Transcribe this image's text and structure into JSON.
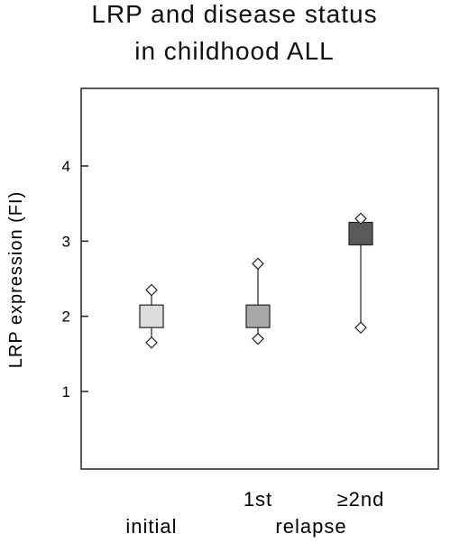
{
  "header": {
    "title_line1": "LRP and disease status",
    "title_line2": "in childhood ALL"
  },
  "chart_data": {
    "type": "boxplot",
    "title": "LRP and disease status in childhood ALL",
    "ylabel": "LRP expression (FI)",
    "ylim": [
      0,
      5
    ],
    "yticks": [
      "1",
      "2",
      "3",
      "4"
    ],
    "grid": false,
    "groups": [
      {
        "label": "initial",
        "box_low": 1.85,
        "box_high": 2.15,
        "min": 1.65,
        "max": 2.35,
        "fill": "#dcdcdc"
      },
      {
        "label": "1st",
        "box_low": 1.85,
        "box_high": 2.15,
        "min": 1.7,
        "max": 2.7,
        "fill": "#a8a8a8"
      },
      {
        "label": "≥2nd",
        "box_low": 2.95,
        "box_high": 3.25,
        "min": 1.85,
        "max": 3.3,
        "fill": "#5a5a5a"
      }
    ],
    "group_caption": "relapse"
  }
}
